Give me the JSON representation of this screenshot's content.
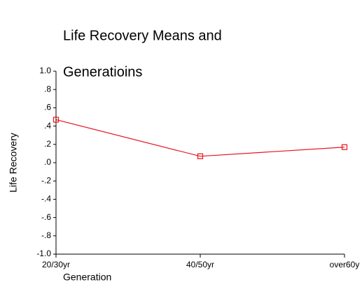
{
  "chart_data": {
    "type": "line",
    "title": [
      "Life Recovery Means and",
      "Generatioins"
    ],
    "x_label": "Generation",
    "y_label": "Life Recovery",
    "categories": [
      "20/30yr",
      "40/50yr",
      "over60y"
    ],
    "series": [
      {
        "name": "Life Recovery",
        "color": "#e8141c",
        "values": [
          0.47,
          0.07,
          0.17
        ]
      }
    ],
    "ylim": [
      -1.0,
      1.0
    ],
    "yticks": [
      {
        "value": -1.0,
        "label": "-1.0"
      },
      {
        "value": -0.8,
        "label": "-.8"
      },
      {
        "value": -0.6,
        "label": "-.6"
      },
      {
        "value": -0.4,
        "label": "-.4"
      },
      {
        "value": -0.2,
        "label": "-.2"
      },
      {
        "value": 0.0,
        "label": ".0"
      },
      {
        "value": 0.2,
        "label": ".2"
      },
      {
        "value": 0.4,
        "label": ".4"
      },
      {
        "value": 0.6,
        "label": ".6"
      },
      {
        "value": 0.8,
        "label": ".8"
      },
      {
        "value": 1.0,
        "label": "1.0"
      }
    ],
    "grid": false
  }
}
